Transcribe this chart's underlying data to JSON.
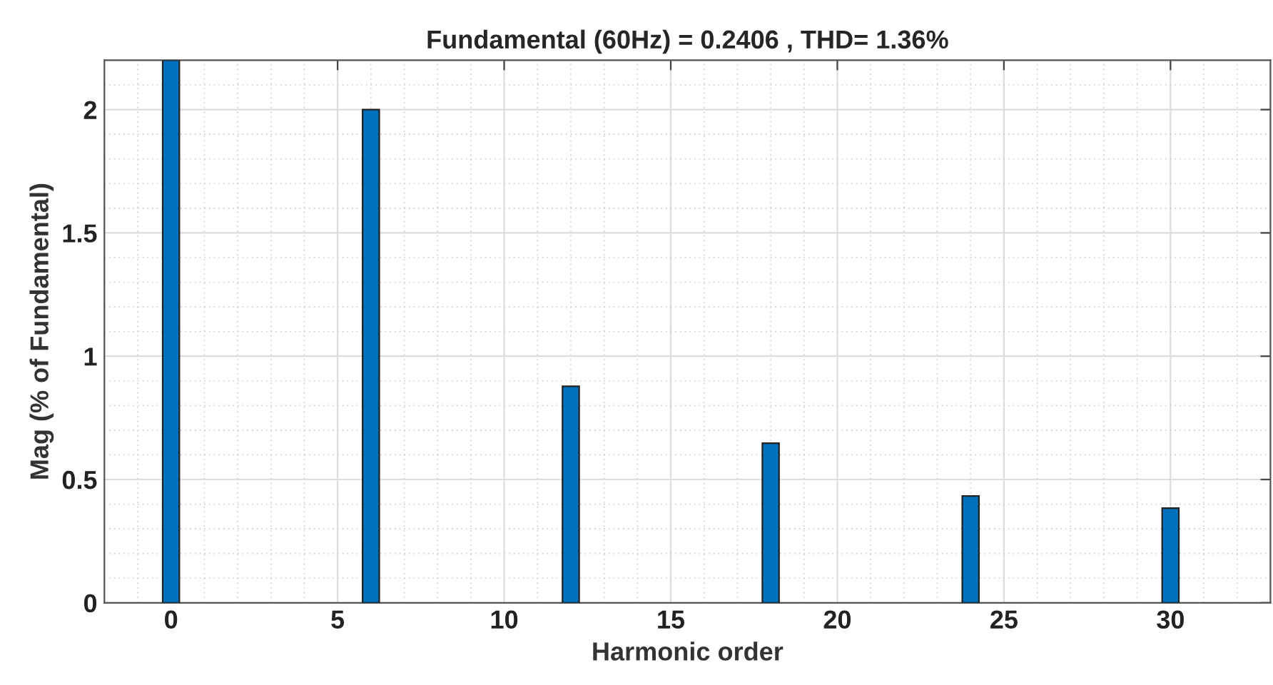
{
  "chart_data": {
    "type": "bar",
    "title": "Fundamental (60Hz) = 0.2406 , THD= 1.36%",
    "xlabel": "Harmonic order",
    "ylabel": "Mag (% of Fundamental)",
    "x": [
      0,
      6,
      12,
      18,
      24,
      30
    ],
    "series": [
      {
        "color": "#0072bd",
        "values": [
          2.2,
          2.0,
          0.878,
          0.647,
          0.433,
          0.384
        ]
      }
    ],
    "xlim": [
      -2,
      33
    ],
    "xticks": [
      0,
      5,
      10,
      15,
      20,
      25,
      30
    ],
    "ylim": [
      0,
      2.2
    ],
    "yticks": [
      0,
      0.5,
      1,
      1.5,
      2
    ],
    "grid": true
  }
}
